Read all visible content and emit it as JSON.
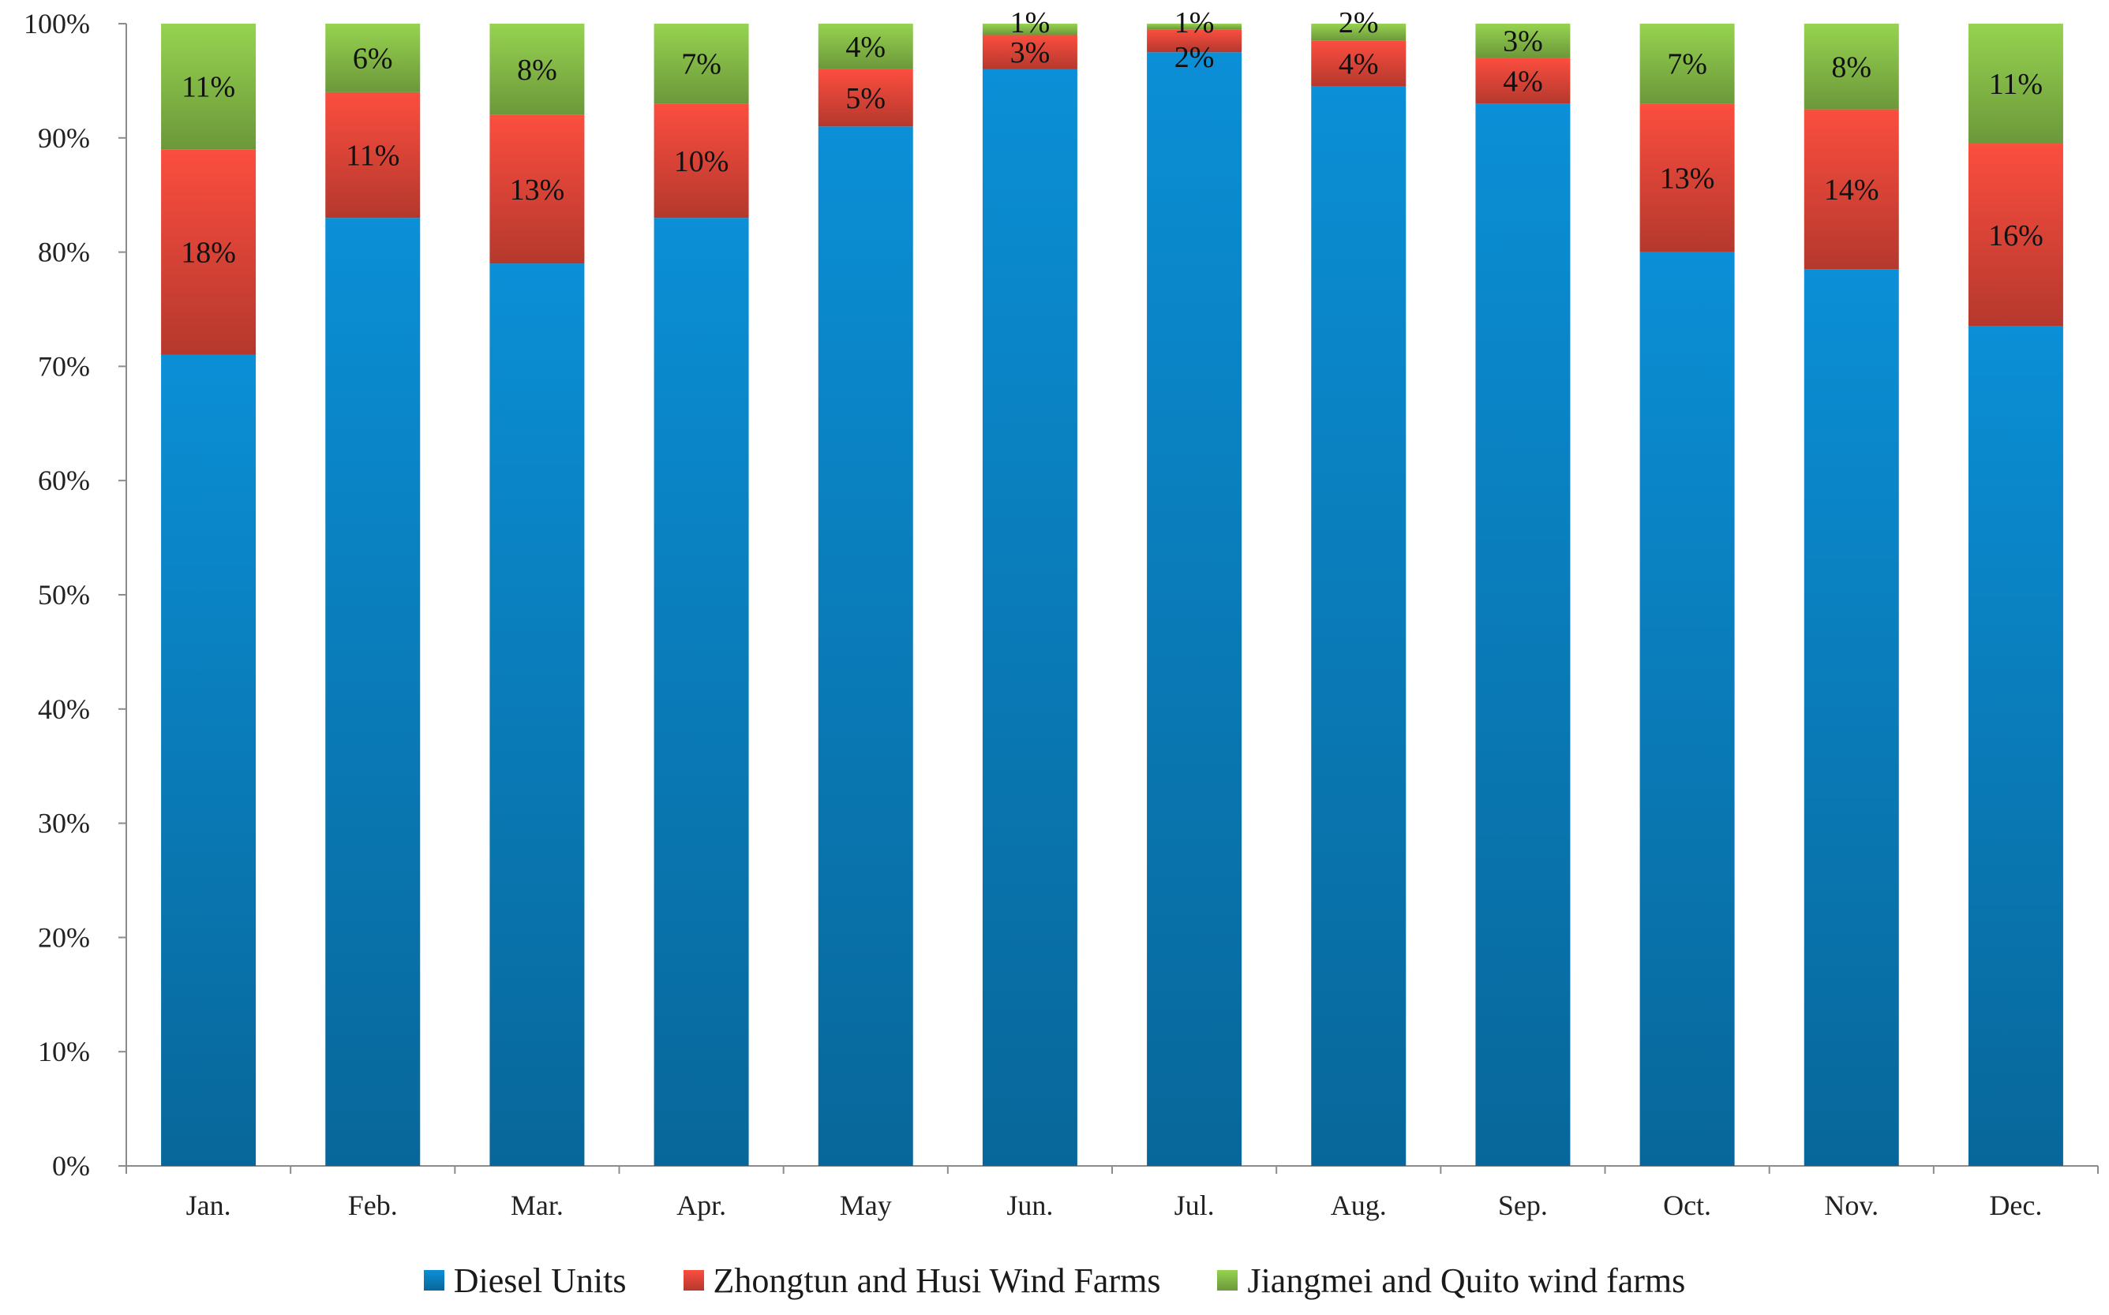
{
  "chart_data": {
    "type": "bar",
    "stacked": true,
    "percent": true,
    "title": "",
    "xlabel": "",
    "ylabel": "",
    "ylim": [
      0,
      100
    ],
    "yticks": [
      "0%",
      "10%",
      "20%",
      "30%",
      "40%",
      "50%",
      "60%",
      "70%",
      "80%",
      "90%",
      "100%"
    ],
    "categories": [
      "Jan.",
      "Feb.",
      "Mar.",
      "Apr.",
      "May",
      "Jun.",
      "Jul.",
      "Aug.",
      "Sep.",
      "Oct.",
      "Nov.",
      "Dec."
    ],
    "series": [
      {
        "name": "Diesel Units",
        "color": "#0A84C6",
        "values": [
          71,
          83,
          79,
          83,
          91,
          96,
          97.5,
          94.5,
          93,
          80,
          78.5,
          73.5
        ],
        "labels": [
          "",
          "",
          "",
          "",
          "",
          "",
          "",
          "",
          "",
          "",
          "",
          ""
        ]
      },
      {
        "name": "Zhongtun and Husi Wind Farms",
        "color": "#E8483A",
        "values": [
          18,
          11,
          13,
          10,
          5,
          3,
          2,
          4,
          4,
          13,
          14,
          16
        ],
        "labels": [
          "18%",
          "11%",
          "13%",
          "10%",
          "5%",
          "3%",
          "2%",
          "4%",
          "4%",
          "13%",
          "14%",
          "16%"
        ]
      },
      {
        "name": "Jiangmei and Quito wind farms",
        "color": "#8BC34A",
        "values": [
          11,
          6,
          8,
          7,
          4,
          1,
          1,
          2,
          3,
          7,
          8,
          11
        ],
        "labels": [
          "11%",
          "6%",
          "8%",
          "7%",
          "4%",
          "1%",
          "1%",
          "2%",
          "3%",
          "7%",
          "8%",
          "11%"
        ]
      }
    ],
    "legend_position": "bottom",
    "grid": false
  }
}
